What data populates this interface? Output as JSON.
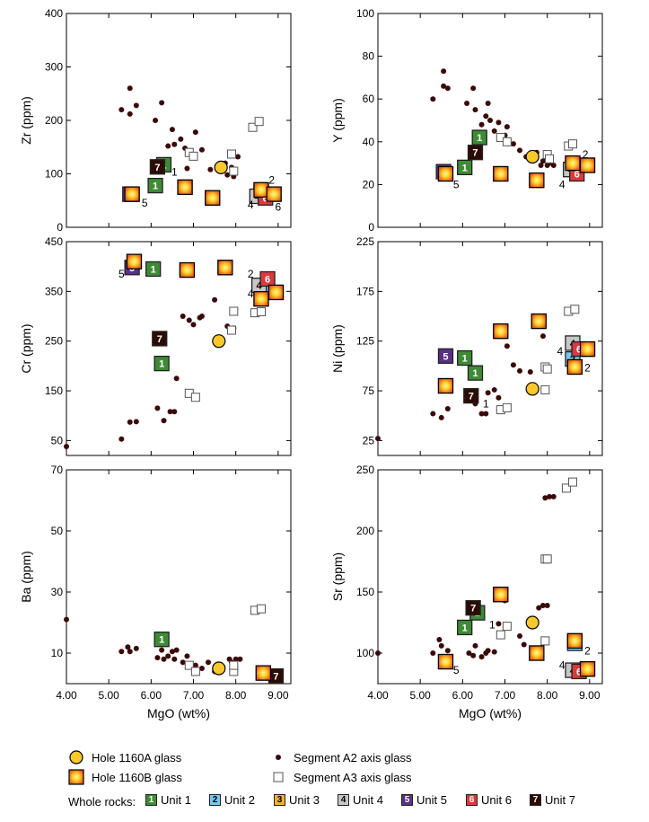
{
  "chart_data": [
    {
      "type": "scatter",
      "panel": "zr",
      "ylabel": "Zr (ppm)",
      "xlabel": "",
      "xlim": [
        4,
        9.3
      ],
      "ylim": [
        0,
        400
      ],
      "yticks": [
        0,
        100,
        200,
        300,
        400
      ],
      "xticks": [],
      "a2": [
        [
          5.3,
          220
        ],
        [
          5.5,
          260
        ],
        [
          5.5,
          212
        ],
        [
          5.65,
          228
        ],
        [
          6.1,
          200
        ],
        [
          6.25,
          233
        ],
        [
          6.4,
          152
        ],
        [
          6.5,
          183
        ],
        [
          6.55,
          155
        ],
        [
          6.7,
          165
        ],
        [
          6.8,
          148
        ],
        [
          6.85,
          110
        ],
        [
          7.05,
          178
        ],
        [
          7.2,
          145
        ],
        [
          7.4,
          108
        ],
        [
          7.75,
          120
        ],
        [
          7.8,
          98
        ],
        [
          7.9,
          112
        ],
        [
          7.95,
          95
        ],
        [
          8.05,
          132
        ]
      ],
      "a3": [
        [
          6.9,
          140
        ],
        [
          7.0,
          133
        ],
        [
          7.9,
          137
        ],
        [
          7.95,
          105
        ],
        [
          8.4,
          187
        ],
        [
          8.55,
          198
        ]
      ],
      "hole1160a": [
        [
          7.65,
          112
        ]
      ],
      "hole1160b": [
        [
          5.55,
          62
        ],
        [
          6.8,
          75
        ],
        [
          7.45,
          55
        ],
        [
          8.6,
          70
        ],
        [
          8.9,
          62
        ]
      ],
      "units": [
        [
          6.1,
          78,
          "1"
        ],
        [
          6.3,
          117,
          "1"
        ],
        [
          8.6,
          65,
          "2"
        ],
        [
          5.55,
          62,
          "3"
        ],
        [
          6.8,
          75,
          "3"
        ],
        [
          7.45,
          55,
          "3"
        ],
        [
          8.6,
          70,
          "3"
        ],
        [
          8.9,
          62,
          "3"
        ],
        [
          8.5,
          58,
          "4"
        ],
        [
          5.5,
          62,
          "5"
        ],
        [
          8.7,
          55,
          "6"
        ],
        [
          6.15,
          113,
          "7"
        ]
      ],
      "annotations": [
        [
          5.85,
          45,
          "5"
        ],
        [
          6.55,
          103,
          "1"
        ],
        [
          8.85,
          88,
          "2"
        ],
        [
          8.35,
          42,
          "4"
        ],
        [
          9.0,
          38,
          "6"
        ]
      ]
    },
    {
      "type": "scatter",
      "panel": "y",
      "ylabel": "Y (ppm)",
      "xlabel": "",
      "xlim": [
        4,
        9.3
      ],
      "ylim": [
        0,
        100
      ],
      "yticks": [
        0,
        20,
        40,
        60,
        80,
        100
      ],
      "xticks": [],
      "a2": [
        [
          5.3,
          60
        ],
        [
          5.55,
          73
        ],
        [
          5.55,
          66
        ],
        [
          5.65,
          65
        ],
        [
          6.1,
          58
        ],
        [
          6.25,
          65
        ],
        [
          6.3,
          55
        ],
        [
          6.45,
          48
        ],
        [
          6.55,
          52
        ],
        [
          6.6,
          58
        ],
        [
          6.65,
          50
        ],
        [
          6.75,
          45
        ],
        [
          6.85,
          49
        ],
        [
          7.0,
          43
        ],
        [
          7.05,
          47
        ],
        [
          7.2,
          39
        ],
        [
          7.35,
          36
        ],
        [
          7.5,
          33
        ],
        [
          7.75,
          35
        ],
        [
          7.85,
          29
        ],
        [
          7.9,
          31
        ],
        [
          8.0,
          29
        ],
        [
          8.05,
          30
        ],
        [
          8.15,
          29
        ]
      ],
      "a3": [
        [
          6.9,
          42
        ],
        [
          7.05,
          40
        ],
        [
          8.0,
          34
        ],
        [
          8.05,
          32
        ],
        [
          8.5,
          38
        ],
        [
          8.6,
          39
        ]
      ],
      "hole1160a": [
        [
          7.65,
          33
        ]
      ],
      "hole1160b": [
        [
          5.6,
          25
        ],
        [
          6.9,
          25
        ],
        [
          7.75,
          22
        ],
        [
          8.6,
          30
        ],
        [
          8.95,
          29
        ]
      ],
      "units": [
        [
          6.4,
          42,
          "1"
        ],
        [
          6.05,
          28,
          "1"
        ],
        [
          8.6,
          28,
          "2"
        ],
        [
          5.6,
          25,
          "3"
        ],
        [
          6.9,
          25,
          "3"
        ],
        [
          7.75,
          22,
          "3"
        ],
        [
          8.6,
          30,
          "3"
        ],
        [
          8.95,
          29,
          "3"
        ],
        [
          8.55,
          27,
          "4"
        ],
        [
          5.55,
          26,
          "5"
        ],
        [
          8.7,
          25,
          "6"
        ],
        [
          6.3,
          35,
          "7"
        ]
      ],
      "annotations": [
        [
          5.85,
          20,
          "5"
        ],
        [
          8.9,
          34,
          "2"
        ],
        [
          8.35,
          20,
          "4"
        ]
      ]
    },
    {
      "type": "scatter",
      "panel": "cr",
      "ylabel": "Cr (ppm)",
      "xlabel": "",
      "xlim": [
        4,
        9.3
      ],
      "ylim": [
        20,
        450
      ],
      "yticks": [
        50,
        150,
        250,
        350,
        450
      ],
      "xticks": [],
      "a2": [
        [
          4.0,
          38
        ],
        [
          5.3,
          53
        ],
        [
          5.5,
          87
        ],
        [
          5.65,
          88
        ],
        [
          6.15,
          115
        ],
        [
          6.3,
          90
        ],
        [
          6.45,
          108
        ],
        [
          6.55,
          108
        ],
        [
          6.6,
          175
        ],
        [
          6.75,
          300
        ],
        [
          6.9,
          292
        ],
        [
          7.0,
          283
        ],
        [
          7.15,
          297
        ],
        [
          7.2,
          300
        ],
        [
          7.5,
          333
        ],
        [
          7.8,
          280
        ],
        [
          7.95,
          276
        ]
      ],
      "a3": [
        [
          6.9,
          145
        ],
        [
          7.05,
          137
        ],
        [
          7.9,
          272
        ],
        [
          7.95,
          310
        ],
        [
          8.45,
          307
        ],
        [
          8.6,
          309
        ]
      ],
      "hole1160a": [
        [
          7.6,
          250
        ]
      ],
      "hole1160b": [
        [
          5.6,
          410
        ],
        [
          6.85,
          393
        ],
        [
          7.75,
          398
        ],
        [
          8.6,
          335
        ],
        [
          8.95,
          348
        ]
      ],
      "units": [
        [
          6.05,
          395,
          "1"
        ],
        [
          6.25,
          205,
          "1"
        ],
        [
          8.65,
          360,
          "2"
        ],
        [
          5.6,
          410,
          "3"
        ],
        [
          6.85,
          393,
          "3"
        ],
        [
          7.75,
          398,
          "3"
        ],
        [
          8.6,
          335,
          "3"
        ],
        [
          8.95,
          348,
          "3"
        ],
        [
          8.55,
          362,
          "4"
        ],
        [
          5.55,
          398,
          "5"
        ],
        [
          8.75,
          375,
          "6"
        ],
        [
          6.2,
          255,
          "7"
        ]
      ],
      "annotations": [
        [
          5.3,
          385,
          "5"
        ],
        [
          8.35,
          385,
          "2"
        ],
        [
          8.35,
          345,
          "4"
        ]
      ]
    },
    {
      "type": "scatter",
      "panel": "ni",
      "ylabel": "Ni (ppm)",
      "xlabel": "",
      "xlim": [
        4,
        9.3
      ],
      "ylim": [
        10,
        225
      ],
      "yticks": [
        25,
        75,
        125,
        175,
        225
      ],
      "xticks": [],
      "a2": [
        [
          4.0,
          27
        ],
        [
          5.3,
          52
        ],
        [
          5.5,
          48
        ],
        [
          5.65,
          57
        ],
        [
          6.15,
          65
        ],
        [
          6.3,
          62
        ],
        [
          6.45,
          52
        ],
        [
          6.55,
          52
        ],
        [
          6.6,
          73
        ],
        [
          6.75,
          76
        ],
        [
          6.85,
          68
        ],
        [
          7.05,
          120
        ],
        [
          7.2,
          101
        ],
        [
          7.35,
          95
        ],
        [
          7.6,
          94
        ],
        [
          7.9,
          130
        ]
      ],
      "a3": [
        [
          6.9,
          56
        ],
        [
          7.05,
          58
        ],
        [
          7.95,
          76
        ],
        [
          7.95,
          99
        ],
        [
          8.0,
          97
        ],
        [
          8.5,
          155
        ],
        [
          8.65,
          157
        ]
      ],
      "hole1160a": [
        [
          7.65,
          77
        ]
      ],
      "hole1160b": [
        [
          5.6,
          80
        ],
        [
          6.9,
          135
        ],
        [
          7.8,
          145
        ],
        [
          8.65,
          99
        ],
        [
          8.95,
          117
        ]
      ],
      "units": [
        [
          6.05,
          108,
          "1"
        ],
        [
          6.3,
          93,
          "1"
        ],
        [
          8.6,
          107,
          "2"
        ],
        [
          5.6,
          80,
          "3"
        ],
        [
          6.9,
          135,
          "3"
        ],
        [
          7.8,
          145,
          "3"
        ],
        [
          8.65,
          99,
          "3"
        ],
        [
          8.95,
          117,
          "3"
        ],
        [
          8.6,
          123,
          "4"
        ],
        [
          5.6,
          110,
          "5"
        ],
        [
          8.75,
          117,
          "6"
        ],
        [
          6.2,
          70,
          "7"
        ]
      ],
      "annotations": [
        [
          6.55,
          62,
          "1"
        ],
        [
          8.95,
          98,
          "2"
        ],
        [
          8.3,
          115,
          "4"
        ]
      ]
    },
    {
      "type": "scatter",
      "panel": "ba",
      "ylabel": "Ba (ppm)",
      "xlabel": "MgO (wt%)",
      "xlim": [
        4,
        9.3
      ],
      "ylim": [
        0,
        70
      ],
      "yticks": [
        10,
        30,
        50,
        70
      ],
      "xticks": [
        "4.00",
        "5.00",
        "6.00",
        "7.00",
        "8.00",
        "9.00"
      ],
      "a2": [
        [
          4.0,
          21
        ],
        [
          5.3,
          10.5
        ],
        [
          5.45,
          12
        ],
        [
          5.5,
          10.5
        ],
        [
          5.65,
          11.5
        ],
        [
          6.15,
          8.5
        ],
        [
          6.25,
          11
        ],
        [
          6.3,
          8
        ],
        [
          6.4,
          9
        ],
        [
          6.5,
          10.5
        ],
        [
          6.55,
          8
        ],
        [
          6.6,
          11
        ],
        [
          6.75,
          7
        ],
        [
          6.85,
          9
        ],
        [
          7.0,
          5
        ],
        [
          7.05,
          6
        ],
        [
          7.2,
          5
        ],
        [
          7.35,
          7
        ],
        [
          7.5,
          4
        ],
        [
          7.85,
          8
        ],
        [
          7.9,
          7
        ],
        [
          8.0,
          8
        ],
        [
          8.1,
          8
        ]
      ],
      "a3": [
        [
          6.9,
          6
        ],
        [
          7.05,
          4
        ],
        [
          7.95,
          4
        ],
        [
          7.95,
          6
        ],
        [
          8.45,
          24
        ],
        [
          8.6,
          24.5
        ]
      ],
      "hole1160a": [
        [
          7.6,
          5
        ]
      ],
      "hole1160b": [
        [
          8.65,
          3.5
        ]
      ],
      "units": [
        [
          6.25,
          14.5,
          "1"
        ],
        [
          8.65,
          3.5,
          "3"
        ],
        [
          8.95,
          2.5,
          "7"
        ]
      ],
      "annotations": []
    },
    {
      "type": "scatter",
      "panel": "sr",
      "ylabel": "Sr (ppm)",
      "xlabel": "MgO (wt%)",
      "xlim": [
        4,
        9.3
      ],
      "ylim": [
        75,
        250
      ],
      "yticks": [
        100,
        150,
        200,
        250
      ],
      "xticks": [
        "4.00",
        "5.00",
        "6.00",
        "7.00",
        "8.00",
        "9.00"
      ],
      "a2": [
        [
          4.0,
          100
        ],
        [
          5.3,
          100
        ],
        [
          5.45,
          111
        ],
        [
          5.5,
          106
        ],
        [
          5.65,
          102
        ],
        [
          6.15,
          100
        ],
        [
          6.25,
          98
        ],
        [
          6.3,
          106
        ],
        [
          6.45,
          97
        ],
        [
          6.55,
          100
        ],
        [
          6.6,
          102
        ],
        [
          6.75,
          101
        ],
        [
          6.85,
          124
        ],
        [
          7.0,
          143
        ],
        [
          7.35,
          114
        ],
        [
          7.45,
          107
        ],
        [
          7.8,
          137
        ],
        [
          7.9,
          139
        ],
        [
          8.0,
          139
        ],
        [
          7.95,
          227
        ],
        [
          8.05,
          228
        ],
        [
          8.15,
          228
        ]
      ],
      "a3": [
        [
          6.9,
          115
        ],
        [
          7.05,
          122
        ],
        [
          7.95,
          110
        ],
        [
          7.95,
          177
        ],
        [
          8.0,
          177
        ],
        [
          8.45,
          235
        ],
        [
          8.6,
          240
        ]
      ],
      "hole1160a": [
        [
          7.65,
          125
        ]
      ],
      "hole1160b": [
        [
          5.6,
          93
        ],
        [
          6.9,
          148
        ],
        [
          7.75,
          100
        ],
        [
          8.65,
          110
        ],
        [
          8.95,
          87
        ]
      ],
      "units": [
        [
          6.05,
          121,
          "1"
        ],
        [
          6.35,
          133,
          "1"
        ],
        [
          8.65,
          108,
          "2"
        ],
        [
          5.6,
          93,
          "3"
        ],
        [
          6.9,
          148,
          "3"
        ],
        [
          7.75,
          100,
          "3"
        ],
        [
          8.65,
          110,
          "3"
        ],
        [
          8.95,
          87,
          "3"
        ],
        [
          8.6,
          86,
          "4"
        ],
        [
          8.75,
          85,
          "6"
        ],
        [
          6.25,
          137,
          "7"
        ]
      ],
      "annotations": [
        [
          5.85,
          86,
          "5"
        ],
        [
          6.7,
          123,
          "1"
        ],
        [
          8.95,
          102,
          "2"
        ],
        [
          8.35,
          90,
          "4"
        ]
      ]
    }
  ],
  "unit_colors": {
    "1": "#3e8b35",
    "2": "#78c8ee",
    "3": "#f2b035",
    "4": "#c9c6c6",
    "5": "#5b2f86",
    "6": "#d93a3e",
    "7": "#2d0b05"
  },
  "legend": {
    "hole1160a": "Hole 1160A glass",
    "hole1160b": "Hole 1160B glass",
    "a2": "Segment A2 axis glass",
    "a3": "Segment A3 axis glass",
    "whole_rocks_label": "Whole rocks:",
    "units": [
      {
        "num": "1",
        "label": "Unit 1"
      },
      {
        "num": "2",
        "label": "Unit 2"
      },
      {
        "num": "3",
        "label": "Unit 3"
      },
      {
        "num": "4",
        "label": "Unit 4"
      },
      {
        "num": "5",
        "label": "Unit 5"
      },
      {
        "num": "6",
        "label": "Unit 6"
      },
      {
        "num": "7",
        "label": "Unit 7"
      }
    ]
  }
}
